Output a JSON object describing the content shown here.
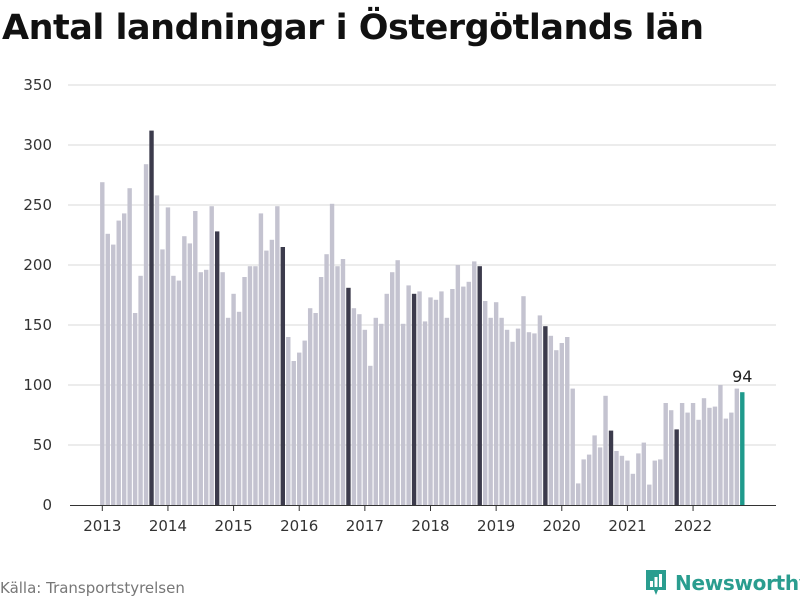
{
  "title": "Antal landningar i Östergötlands län",
  "source": "Källa: Transportstyrelsen",
  "brand": {
    "name": "Newsworthy",
    "icon": "bar-chart-logo-icon"
  },
  "colors": {
    "bar": "#c4c3d0",
    "highlight": "#3c3b4c",
    "latest": "#1f9a8c",
    "grid": "#d9d9d9",
    "brand": "#2a9d8f"
  },
  "chart_data": {
    "type": "bar",
    "x_start": "2013-01",
    "x_tick_labels": [
      "2013",
      "2014",
      "2015",
      "2016",
      "2017",
      "2018",
      "2019",
      "2020",
      "2021",
      "2022"
    ],
    "y_tick_labels": [
      "0",
      "50",
      "100",
      "150",
      "200",
      "250",
      "300",
      "350"
    ],
    "ylim": [
      0,
      350
    ],
    "grid": true,
    "values": [
      269,
      226,
      217,
      237,
      243,
      264,
      160,
      191,
      284,
      312,
      258,
      213,
      248,
      191,
      187,
      224,
      218,
      245,
      194,
      196,
      249,
      228,
      194,
      156,
      176,
      161,
      190,
      199,
      199,
      243,
      212,
      221,
      249,
      215,
      140,
      120,
      127,
      137,
      164,
      160,
      190,
      209,
      251,
      199,
      205,
      181,
      164,
      159,
      146,
      116,
      156,
      151,
      176,
      194,
      204,
      151,
      183,
      176,
      178,
      153,
      173,
      171,
      178,
      156,
      180,
      200,
      182,
      186,
      203,
      199,
      170,
      156,
      169,
      156,
      146,
      136,
      147,
      174,
      144,
      143,
      158,
      149,
      141,
      129,
      135,
      140,
      97,
      18,
      38,
      42,
      58,
      48,
      91,
      62,
      45,
      41,
      37,
      26,
      43,
      52,
      17,
      37,
      38,
      85,
      79,
      63,
      85,
      77,
      85,
      71,
      89,
      81,
      82,
      100,
      72,
      77,
      97,
      94
    ],
    "highlighted": [
      "2013-10",
      "2014-10",
      "2015-10",
      "2016-10",
      "2017-10",
      "2018-10",
      "2019-10",
      "2020-10",
      "2021-10"
    ],
    "latest_label": "94"
  }
}
